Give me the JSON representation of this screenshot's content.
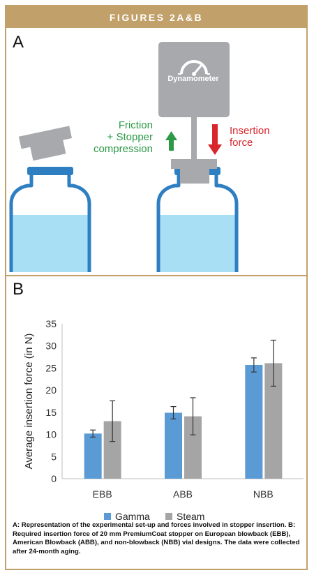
{
  "header": {
    "title": "FIGURES 2A&B"
  },
  "panel_a": {
    "letter": "A",
    "dynamometer_label": "Dynamometer",
    "friction_lines": [
      "Friction",
      "+ Stopper",
      "compression"
    ],
    "insertion_lines": [
      "Insertion",
      "force"
    ],
    "colors": {
      "liquid": "#a9dff5",
      "vial_outline": "#2e7fc1",
      "stopper": "#a7a9ac",
      "dynamometer": "#a7a9ac",
      "green_arrow": "#2e9a48",
      "red_arrow": "#d9262d"
    }
  },
  "panel_b": {
    "letter": "B"
  },
  "chart_data": {
    "type": "bar",
    "categories": [
      "EBB",
      "ABB",
      "NBB"
    ],
    "series": [
      {
        "name": "Gamma",
        "color": "#5b9bd5",
        "values": [
          10.2,
          14.9,
          25.7
        ],
        "error": [
          0.8,
          1.4,
          1.6
        ]
      },
      {
        "name": "Steam",
        "color": "#a5a5a5",
        "values": [
          13.0,
          14.1,
          26.1
        ],
        "error": [
          4.6,
          4.2,
          5.2
        ]
      }
    ],
    "ylabel": "Average insertion force (in N)",
    "ylim": [
      0,
      35
    ],
    "yticks": [
      0,
      5,
      10,
      15,
      20,
      25,
      30,
      35
    ],
    "grid": false,
    "legend": "bottom"
  },
  "caption": "A: Representation of the experimental set-up and forces involved in stopper insertion. B: Required insertion force of 20 mm PremiumCoat stopper on European blowback (EBB), American Blowback (ABB), and non-blowback (NBB) vial designs. The data were collected after 24-month aging."
}
